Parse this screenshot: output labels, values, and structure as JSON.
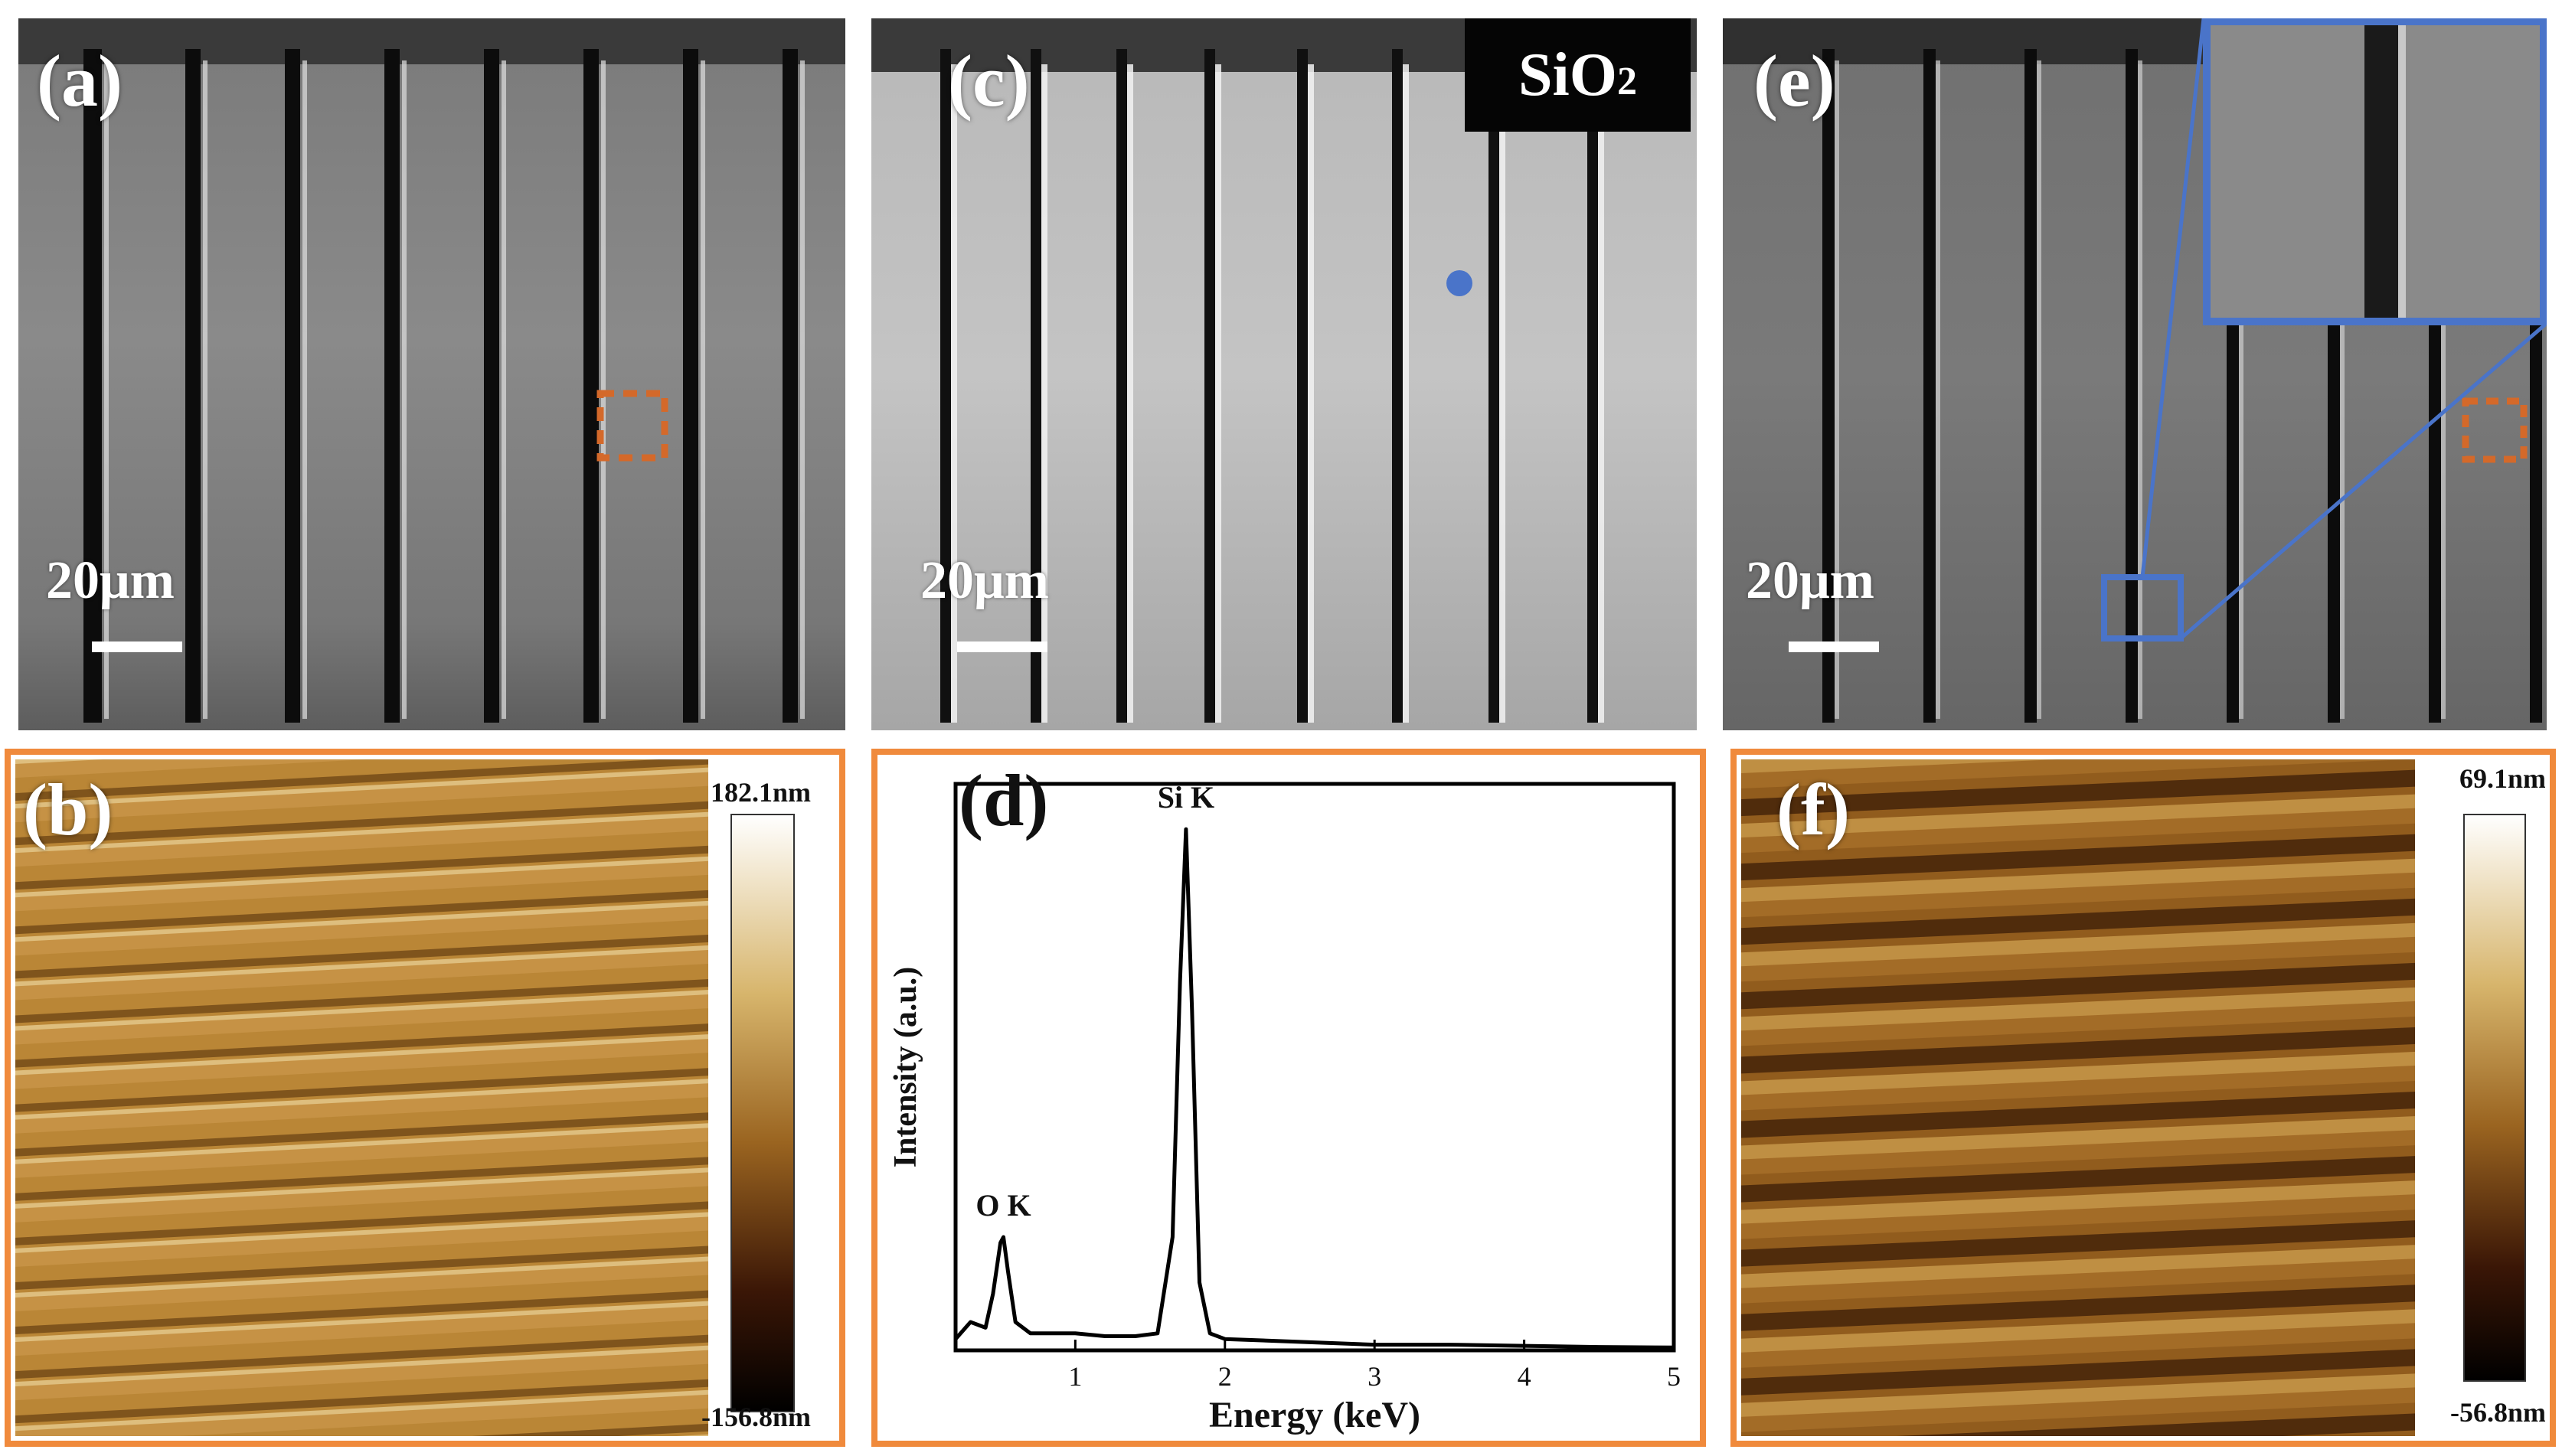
{
  "panels": {
    "a": {
      "label": "(a)",
      "scale": "20μm"
    },
    "b": {
      "label": "(b)",
      "cb_max": "182.1nm",
      "cb_min": "-156.8nm"
    },
    "c": {
      "label": "(c)",
      "scale": "20μm",
      "badge": "SiO",
      "badge_sub": "2"
    },
    "d": {
      "label": "(d)"
    },
    "e": {
      "label": "(e)",
      "scale": "20μm"
    },
    "f": {
      "label": "(f)",
      "cb_max": "69.1nm",
      "cb_min": "-56.8nm"
    }
  },
  "colors": {
    "frame": "#f08a3c",
    "marker": "#4a74c9",
    "roi": "#d4692a"
  },
  "chart_data": {
    "type": "line",
    "xlabel": "Energy (keV)",
    "ylabel": "Intensity (a.u.)",
    "xlim": [
      0.2,
      5
    ],
    "ylim": [
      0,
      1.0
    ],
    "x_ticks": [
      "1",
      "2",
      "3",
      "4",
      "5"
    ],
    "peaks": [
      {
        "name": "O K",
        "x": 0.52,
        "y": 0.2
      },
      {
        "name": "Si K",
        "x": 1.74,
        "y": 0.92
      }
    ],
    "series": [
      {
        "x": [
          0.2,
          0.3,
          0.4,
          0.45,
          0.5,
          0.52,
          0.55,
          0.6,
          0.7,
          0.8,
          1.0,
          1.2,
          1.4,
          1.55,
          1.65,
          1.7,
          1.74,
          1.78,
          1.83,
          1.9,
          2.0,
          2.5,
          3.0,
          3.5,
          4.0,
          4.5,
          5.0
        ],
        "y": [
          0.02,
          0.05,
          0.04,
          0.1,
          0.19,
          0.2,
          0.14,
          0.05,
          0.03,
          0.03,
          0.03,
          0.025,
          0.025,
          0.03,
          0.2,
          0.65,
          0.92,
          0.6,
          0.12,
          0.03,
          0.02,
          0.015,
          0.01,
          0.01,
          0.008,
          0.006,
          0.005
        ]
      }
    ]
  }
}
